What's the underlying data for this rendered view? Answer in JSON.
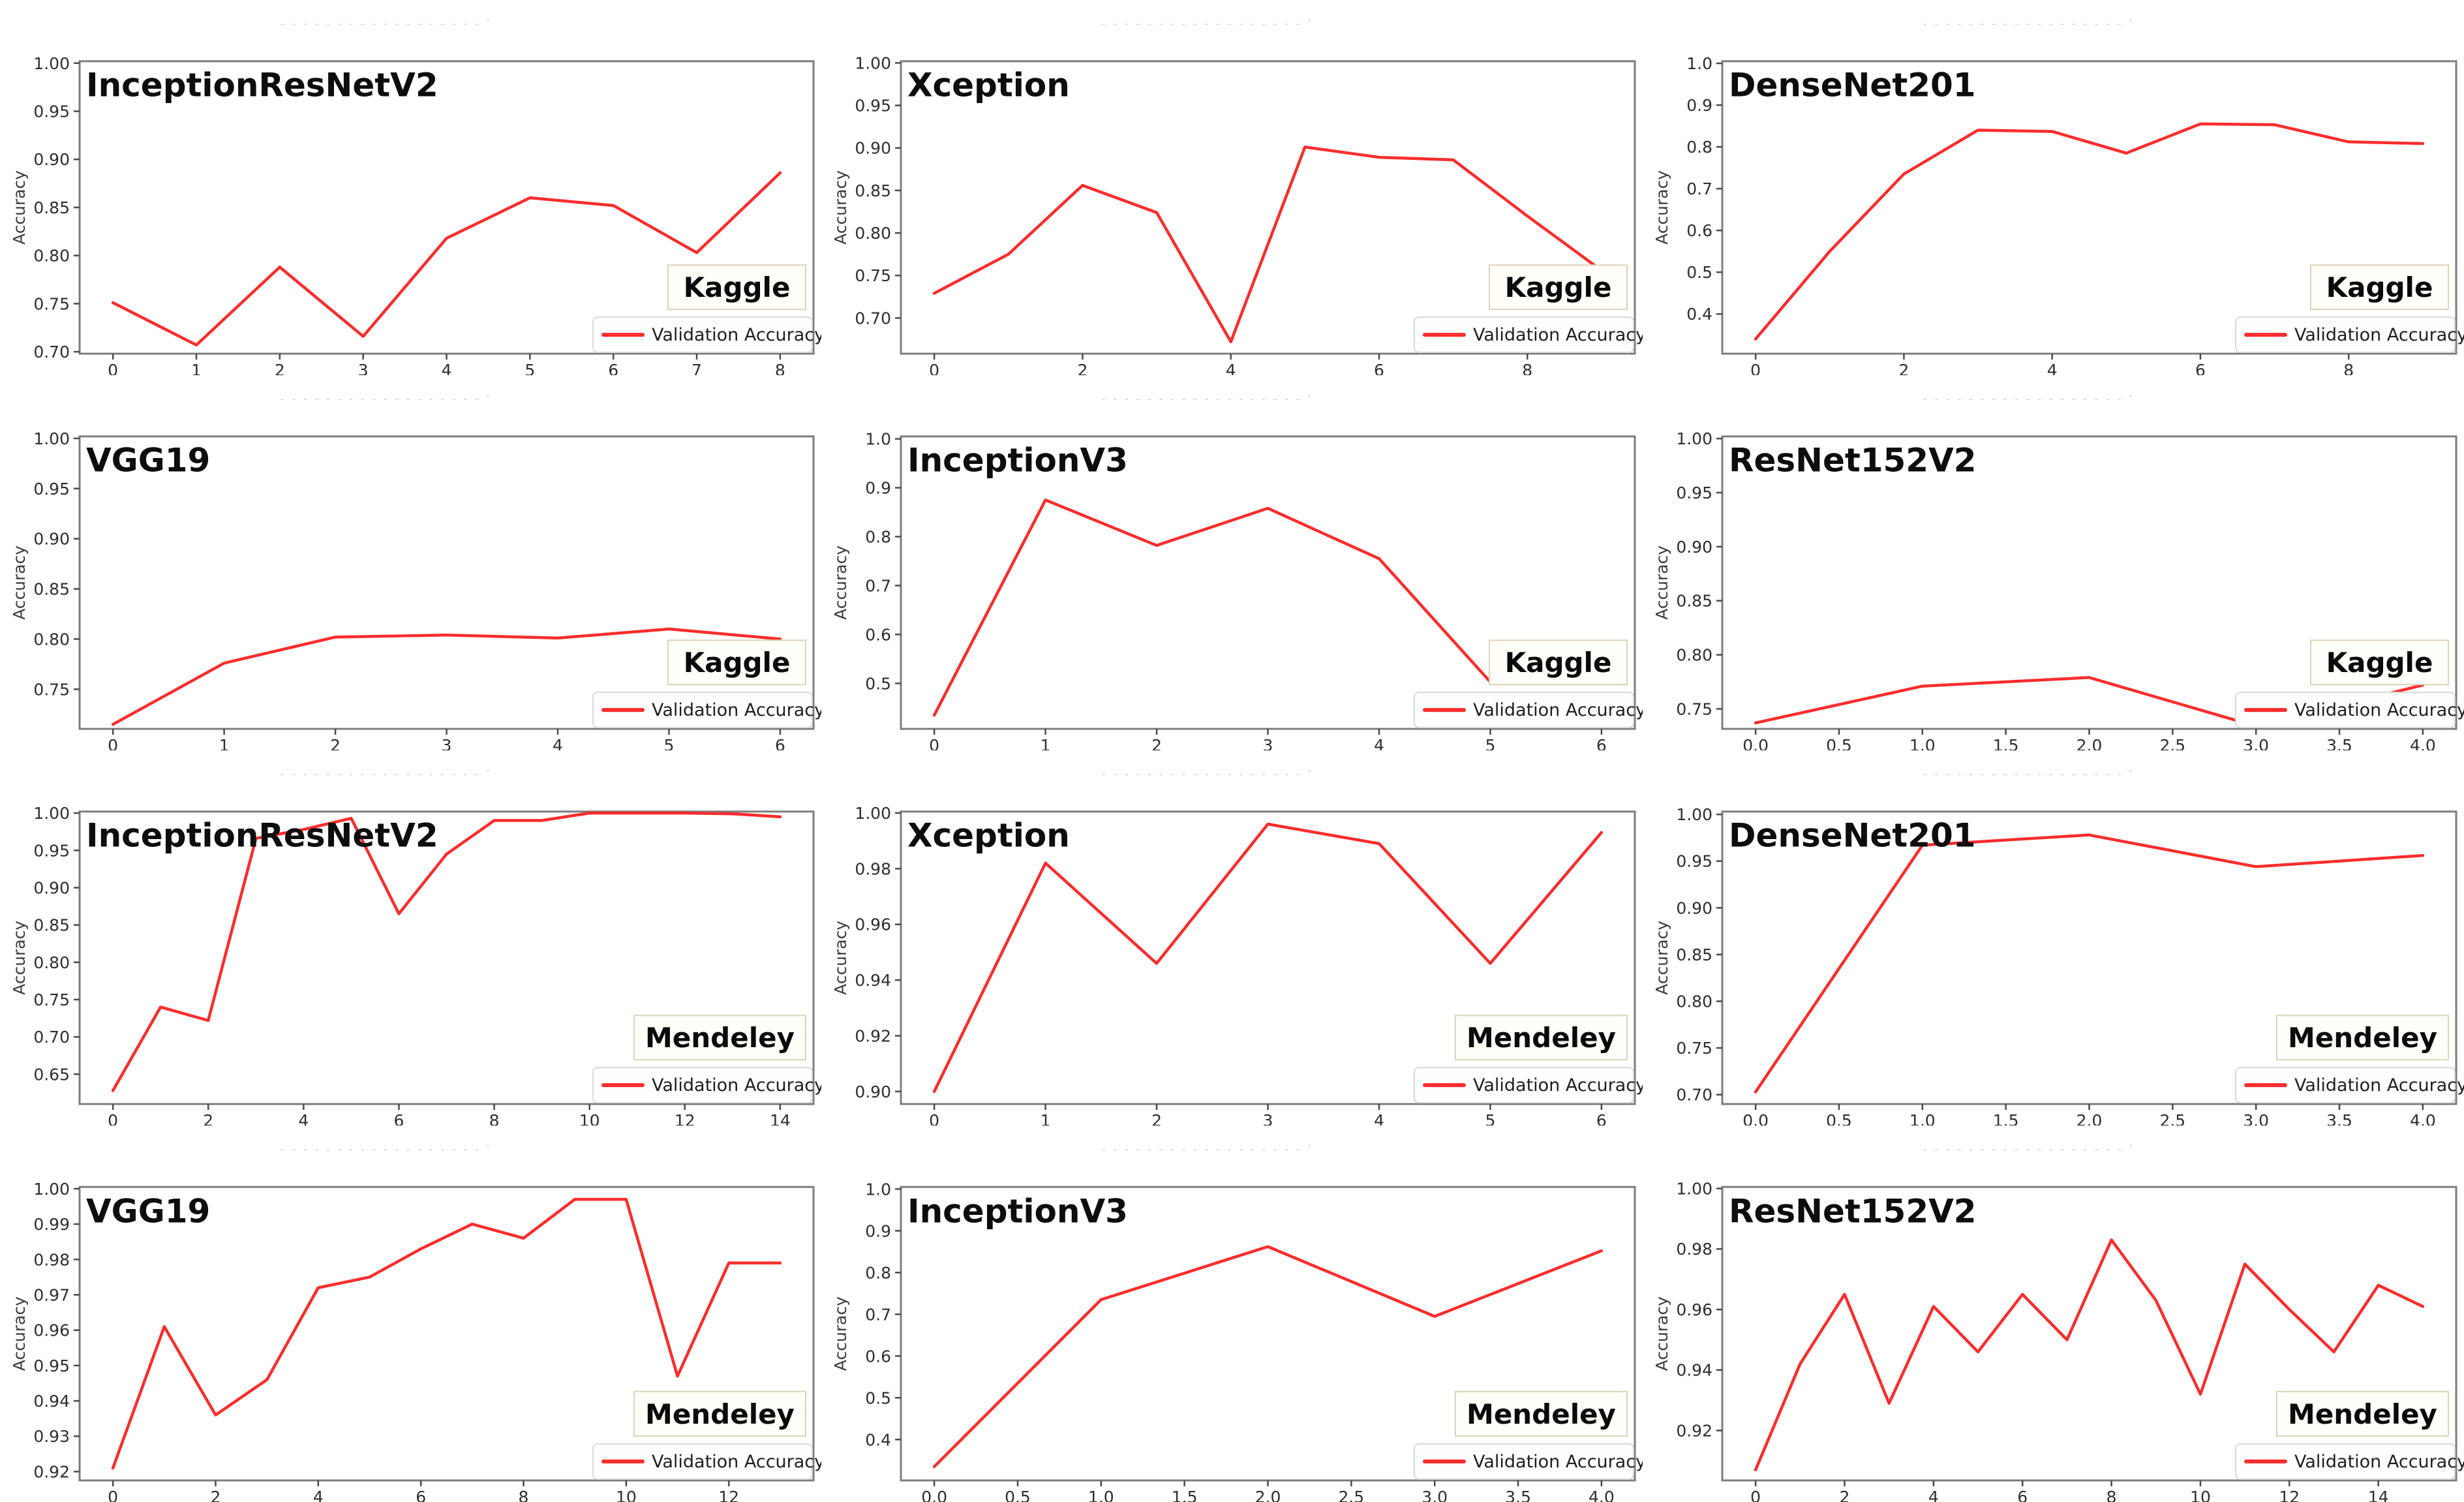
{
  "page": {
    "background": "#ffffff"
  },
  "shared": {
    "ylabel": "Accuracy",
    "legend_label": "Validation Accuracy",
    "line_color": "#fa2d2d",
    "spine_color": "#7d7d7d",
    "tick_color": "#4a4a4a",
    "tick_label_color": "#2f2f2f",
    "title_color": "#0d0d0d",
    "dataset_box_border": "#ddd3b8",
    "dataset_box_fill": "#fffef8",
    "legend_box_border": "#d9d9d9",
    "legend_box_fill": "#fefefe",
    "faded_header": "- - - - - - - - - - - - - - - - - - ʼ"
  },
  "chart_data": [
    {
      "type": "line",
      "model": "InceptionResNetV2",
      "dataset": "Kaggle",
      "x": [
        0,
        1,
        2,
        3,
        4,
        5,
        6,
        7,
        8
      ],
      "y": [
        0.751,
        0.707,
        0.788,
        0.716,
        0.818,
        0.86,
        0.852,
        0.803,
        0.886
      ],
      "xlim": [
        -0.4,
        8.4
      ],
      "ylim": [
        0.698,
        1.002
      ],
      "x_ticks": [
        0,
        1,
        2,
        3,
        4,
        5,
        6,
        7,
        8
      ],
      "x_tick_labels": [
        "0",
        "1",
        "2",
        "3",
        "4",
        "5",
        "6",
        "7",
        "8"
      ],
      "y_ticks": [
        0.7,
        0.75,
        0.8,
        0.85,
        0.9,
        0.95,
        1.0
      ],
      "y_tick_labels": [
        "0.70",
        "0.75",
        "0.80",
        "0.85",
        "0.90",
        "0.95",
        "1.00"
      ]
    },
    {
      "type": "line",
      "model": "Xception",
      "dataset": "Kaggle",
      "x": [
        0,
        1,
        2,
        3,
        4,
        5,
        6,
        7,
        8,
        9
      ],
      "y": [
        0.729,
        0.775,
        0.856,
        0.824,
        0.672,
        0.901,
        0.889,
        0.886,
        0.82,
        0.756
      ],
      "xlim": [
        -0.45,
        9.45
      ],
      "ylim": [
        0.658,
        1.002
      ],
      "x_ticks": [
        0,
        2,
        4,
        6,
        8
      ],
      "x_tick_labels": [
        "0",
        "2",
        "4",
        "6",
        "8"
      ],
      "y_ticks": [
        0.7,
        0.75,
        0.8,
        0.85,
        0.9,
        0.95,
        1.0
      ],
      "y_tick_labels": [
        "0.70",
        "0.75",
        "0.80",
        "0.85",
        "0.90",
        "0.95",
        "1.00"
      ]
    },
    {
      "type": "line",
      "model": "DenseNet201",
      "dataset": "Kaggle",
      "x": [
        0,
        1,
        2,
        3,
        4,
        5,
        6,
        7,
        8,
        9
      ],
      "y": [
        0.34,
        0.55,
        0.735,
        0.84,
        0.837,
        0.785,
        0.855,
        0.853,
        0.812,
        0.808
      ],
      "xlim": [
        -0.45,
        9.45
      ],
      "ylim": [
        0.305,
        1.005
      ],
      "x_ticks": [
        0,
        2,
        4,
        6,
        8
      ],
      "x_tick_labels": [
        "0",
        "2",
        "4",
        "6",
        "8"
      ],
      "y_ticks": [
        0.4,
        0.5,
        0.6,
        0.7,
        0.8,
        0.9,
        1.0
      ],
      "y_tick_labels": [
        "0.4",
        "0.5",
        "0.6",
        "0.7",
        "0.8",
        "0.9",
        "1.0"
      ]
    },
    {
      "type": "line",
      "model": "VGG19",
      "dataset": "Kaggle",
      "x": [
        0,
        1,
        2,
        3,
        4,
        5,
        6
      ],
      "y": [
        0.715,
        0.776,
        0.802,
        0.804,
        0.801,
        0.81,
        0.8
      ],
      "xlim": [
        -0.3,
        6.3
      ],
      "ylim": [
        0.7105,
        1.002
      ],
      "x_ticks": [
        0,
        1,
        2,
        3,
        4,
        5,
        6
      ],
      "x_tick_labels": [
        "0",
        "1",
        "2",
        "3",
        "4",
        "5",
        "6"
      ],
      "y_ticks": [
        0.75,
        0.8,
        0.85,
        0.9,
        0.95,
        1.0
      ],
      "y_tick_labels": [
        "0.75",
        "0.80",
        "0.85",
        "0.90",
        "0.95",
        "1.00"
      ]
    },
    {
      "type": "line",
      "model": "InceptionV3",
      "dataset": "Kaggle",
      "x": [
        0,
        1,
        2,
        3,
        4,
        5,
        6
      ],
      "y": [
        0.435,
        0.875,
        0.782,
        0.858,
        0.755,
        0.503,
        0.51
      ],
      "xlim": [
        -0.3,
        6.3
      ],
      "ylim": [
        0.407,
        1.005
      ],
      "x_ticks": [
        0,
        1,
        2,
        3,
        4,
        5,
        6
      ],
      "x_tick_labels": [
        "0",
        "1",
        "2",
        "3",
        "4",
        "5",
        "6"
      ],
      "y_ticks": [
        0.5,
        0.6,
        0.7,
        0.8,
        0.9,
        1.0
      ],
      "y_tick_labels": [
        "0.5",
        "0.6",
        "0.7",
        "0.8",
        "0.9",
        "1.0"
      ]
    },
    {
      "type": "line",
      "model": "ResNet152V2",
      "dataset": "Kaggle",
      "x": [
        0,
        1,
        2,
        3,
        4
      ],
      "y": [
        0.737,
        0.771,
        0.779,
        0.734,
        0.772
      ],
      "xlim": [
        -0.2,
        4.2
      ],
      "ylim": [
        0.7315,
        1.002
      ],
      "x_ticks": [
        0,
        0.5,
        1,
        1.5,
        2,
        2.5,
        3,
        3.5,
        4
      ],
      "x_tick_labels": [
        "0.0",
        "0.5",
        "1.0",
        "1.5",
        "2.0",
        "2.5",
        "3.0",
        "3.5",
        "4.0"
      ],
      "y_ticks": [
        0.75,
        0.8,
        0.85,
        0.9,
        0.95,
        1.0
      ],
      "y_tick_labels": [
        "0.75",
        "0.80",
        "0.85",
        "0.90",
        "0.95",
        "1.00"
      ]
    },
    {
      "type": "line",
      "model": "InceptionResNetV2",
      "dataset": "Mendeley",
      "x": [
        0,
        1,
        2,
        3,
        4,
        5,
        6,
        7,
        8,
        9,
        10,
        11,
        12,
        13,
        14
      ],
      "y": [
        0.628,
        0.74,
        0.722,
        0.966,
        0.978,
        0.993,
        0.865,
        0.945,
        0.99,
        0.99,
        1.0,
        1.0,
        1.0,
        0.999,
        0.995
      ],
      "xlim": [
        -0.7,
        14.7
      ],
      "ylim": [
        0.61,
        1.002
      ],
      "x_ticks": [
        0,
        2,
        4,
        6,
        8,
        10,
        12,
        14
      ],
      "x_tick_labels": [
        "0",
        "2",
        "4",
        "6",
        "8",
        "10",
        "12",
        "14"
      ],
      "y_ticks": [
        0.65,
        0.7,
        0.75,
        0.8,
        0.85,
        0.9,
        0.95,
        1.0
      ],
      "y_tick_labels": [
        "0.65",
        "0.70",
        "0.75",
        "0.80",
        "0.85",
        "0.90",
        "0.95",
        "1.00"
      ]
    },
    {
      "type": "line",
      "model": "Xception",
      "dataset": "Mendeley",
      "x": [
        0,
        1,
        2,
        3,
        4,
        5,
        6
      ],
      "y": [
        0.9,
        0.982,
        0.946,
        0.996,
        0.989,
        0.946,
        0.993
      ],
      "xlim": [
        -0.3,
        6.3
      ],
      "ylim": [
        0.8955,
        1.0005
      ],
      "x_ticks": [
        0,
        1,
        2,
        3,
        4,
        5,
        6
      ],
      "x_tick_labels": [
        "0",
        "1",
        "2",
        "3",
        "4",
        "5",
        "6"
      ],
      "y_ticks": [
        0.9,
        0.92,
        0.94,
        0.96,
        0.98,
        1.0
      ],
      "y_tick_labels": [
        "0.90",
        "0.92",
        "0.94",
        "0.96",
        "0.98",
        "1.00"
      ]
    },
    {
      "type": "line",
      "model": "DenseNet201",
      "dataset": "Mendeley",
      "x": [
        0,
        1,
        2,
        3,
        4
      ],
      "y": [
        0.703,
        0.967,
        0.978,
        0.944,
        0.956
      ],
      "xlim": [
        -0.2,
        4.2
      ],
      "ylim": [
        0.69,
        1.003
      ],
      "x_ticks": [
        0,
        0.5,
        1,
        1.5,
        2,
        2.5,
        3,
        3.5,
        4
      ],
      "x_tick_labels": [
        "0.0",
        "0.5",
        "1.0",
        "1.5",
        "2.0",
        "2.5",
        "3.0",
        "3.5",
        "4.0"
      ],
      "y_ticks": [
        0.7,
        0.75,
        0.8,
        0.85,
        0.9,
        0.95,
        1.0
      ],
      "y_tick_labels": [
        "0.70",
        "0.75",
        "0.80",
        "0.85",
        "0.90",
        "0.95",
        "1.00"
      ]
    },
    {
      "type": "line",
      "model": "VGG19",
      "dataset": "Mendeley",
      "x": [
        0,
        1,
        2,
        3,
        4,
        5,
        6,
        7,
        8,
        9,
        10,
        11,
        12,
        13
      ],
      "y": [
        0.921,
        0.961,
        0.936,
        0.946,
        0.972,
        0.975,
        0.983,
        0.99,
        0.986,
        0.997,
        0.997,
        0.947,
        0.979,
        0.979
      ],
      "xlim": [
        -0.65,
        13.65
      ],
      "ylim": [
        0.9175,
        1.0005
      ],
      "x_ticks": [
        0,
        2,
        4,
        6,
        8,
        10,
        12
      ],
      "x_tick_labels": [
        "0",
        "2",
        "4",
        "6",
        "8",
        "10",
        "12"
      ],
      "y_ticks": [
        0.92,
        0.93,
        0.94,
        0.95,
        0.96,
        0.97,
        0.98,
        0.99,
        1.0
      ],
      "y_tick_labels": [
        "0.92",
        "0.93",
        "0.94",
        "0.95",
        "0.96",
        "0.97",
        "0.98",
        "0.99",
        "1.00"
      ]
    },
    {
      "type": "line",
      "model": "InceptionV3",
      "dataset": "Mendeley",
      "x": [
        0,
        1,
        2,
        3,
        4
      ],
      "y": [
        0.335,
        0.735,
        0.862,
        0.695,
        0.852
      ],
      "xlim": [
        -0.2,
        4.2
      ],
      "ylim": [
        0.302,
        1.005
      ],
      "x_ticks": [
        0,
        0.5,
        1,
        1.5,
        2,
        2.5,
        3,
        3.5,
        4
      ],
      "x_tick_labels": [
        "0.0",
        "0.5",
        "1.0",
        "1.5",
        "2.0",
        "2.5",
        "3.0",
        "3.5",
        "4.0"
      ],
      "y_ticks": [
        0.4,
        0.5,
        0.6,
        0.7,
        0.8,
        0.9,
        1.0
      ],
      "y_tick_labels": [
        "0.4",
        "0.5",
        "0.6",
        "0.7",
        "0.8",
        "0.9",
        "1.0"
      ]
    },
    {
      "type": "line",
      "model": "ResNet152V2",
      "dataset": "Mendeley",
      "x": [
        0,
        1,
        2,
        3,
        4,
        5,
        6,
        7,
        8,
        9,
        10,
        11,
        12,
        13,
        14,
        15
      ],
      "y": [
        0.907,
        0.942,
        0.965,
        0.929,
        0.961,
        0.946,
        0.965,
        0.95,
        0.983,
        0.963,
        0.932,
        0.975,
        0.96,
        0.946,
        0.968,
        0.961
      ],
      "xlim": [
        -0.75,
        15.75
      ],
      "ylim": [
        0.9035,
        1.0005
      ],
      "x_ticks": [
        0,
        2,
        4,
        6,
        8,
        10,
        12,
        14
      ],
      "x_tick_labels": [
        "0",
        "2",
        "4",
        "6",
        "8",
        "10",
        "12",
        "14"
      ],
      "y_ticks": [
        0.92,
        0.94,
        0.96,
        0.98,
        1.0
      ],
      "y_tick_labels": [
        "0.92",
        "0.94",
        "0.96",
        "0.98",
        "1.00"
      ]
    }
  ]
}
